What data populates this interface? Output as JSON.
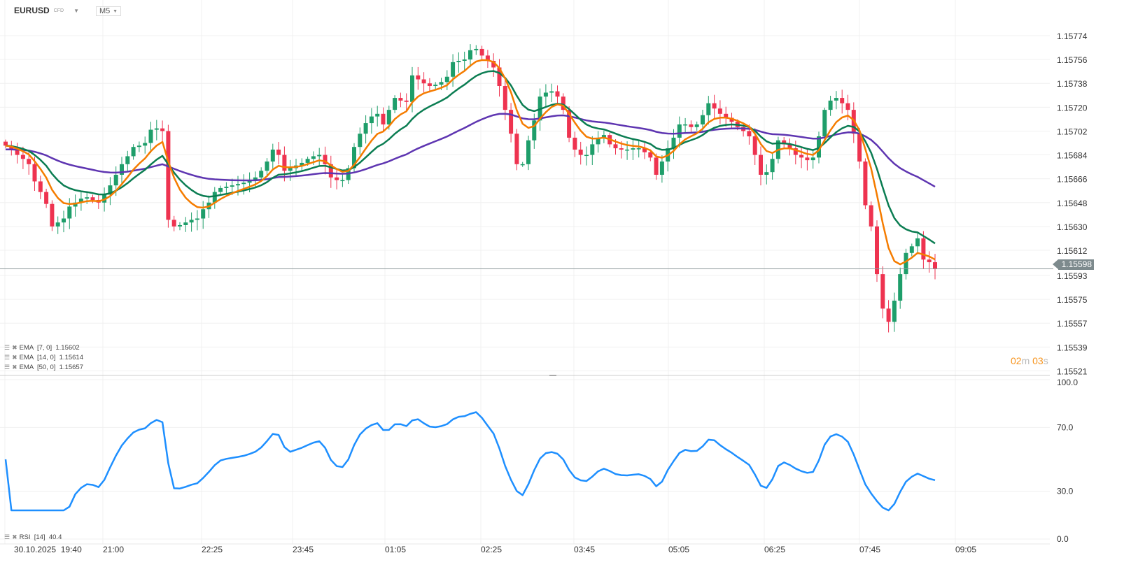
{
  "header": {
    "symbol": "EURUSD",
    "symbol_type": "CFD",
    "timeframe": "M5"
  },
  "current_price": "1.15598",
  "countdown": {
    "minutes": "02",
    "m_unit": "m",
    "seconds": "03",
    "s_unit": "s"
  },
  "indicators": {
    "ema7": "EMA  [7, 0]  1.15602",
    "ema14": "EMA  [14, 0]  1.15614",
    "ema50": "EMA  [50, 0]  1.15657",
    "rsi": "RSI  [14]  40.4"
  },
  "colors": {
    "up": "#1e9e6a",
    "down": "#ee3350",
    "ema7": "#f57c00",
    "ema14": "#0b7d52",
    "ema50": "#5e35b1",
    "rsi": "#1e8fff",
    "price_line": "#8e9a9c"
  },
  "chart_data": {
    "type": "candlestick",
    "interval": "5m",
    "price_ticks": [
      "1.15774",
      "1.15756",
      "1.15738",
      "1.15720",
      "1.15702",
      "1.15684",
      "1.15666",
      "1.15648",
      "1.15630",
      "1.15612",
      "1.15593",
      "1.15575",
      "1.15557",
      "1.15539",
      "1.15521"
    ],
    "time_ticks": [
      "30.10.2025  19:40",
      "21:00",
      "22:25",
      "23:45",
      "01:05",
      "02:25",
      "03:45",
      "05:05",
      "06:25",
      "07:45",
      "09:05"
    ],
    "rsi_ticks": [
      "100.0",
      "70.0",
      "30.0",
      "0.0"
    ],
    "closes": [
      1.15691,
      1.15688,
      1.15684,
      1.15681,
      1.15677,
      1.15664,
      1.15656,
      1.15647,
      1.1563,
      1.15633,
      1.15636,
      1.15645,
      1.15648,
      1.15651,
      1.15652,
      1.1565,
      1.15648,
      1.15654,
      1.15661,
      1.15669,
      1.15677,
      1.15683,
      1.1569,
      1.15691,
      1.15693,
      1.15703,
      1.15704,
      1.15702,
      1.15635,
      1.1563,
      1.15631,
      1.15633,
      1.15635,
      1.15636,
      1.15643,
      1.15648,
      1.15656,
      1.15659,
      1.1566,
      1.15661,
      1.15662,
      1.15663,
      1.15665,
      1.15667,
      1.15672,
      1.15679,
      1.15688,
      1.15684,
      1.15672,
      1.15674,
      1.15676,
      1.15678,
      1.15681,
      1.15683,
      1.15684,
      1.15677,
      1.15667,
      1.15665,
      1.15665,
      1.15674,
      1.1569,
      1.157,
      1.15708,
      1.15713,
      1.15715,
      1.15707,
      1.15718,
      1.15727,
      1.15725,
      1.15724,
      1.15744,
      1.15741,
      1.15738,
      1.15736,
      1.15737,
      1.15739,
      1.15743,
      1.15754,
      1.15755,
      1.15756,
      1.15763,
      1.15764,
      1.15759,
      1.15755,
      1.1575,
      1.15736,
      1.15718,
      1.157,
      1.15677,
      1.15677,
      1.15695,
      1.1571,
      1.15728,
      1.15731,
      1.15732,
      1.15728,
      1.15718,
      1.15697,
      1.15688,
      1.15684,
      1.15684,
      1.15692,
      1.15697,
      1.15699,
      1.15692,
      1.15689,
      1.15688,
      1.15688,
      1.15689,
      1.15689,
      1.15686,
      1.15682,
      1.15669,
      1.15679,
      1.15689,
      1.15697,
      1.15707,
      1.15707,
      1.15705,
      1.15707,
      1.15714,
      1.15723,
      1.15719,
      1.15715,
      1.15712,
      1.15709,
      1.15705,
      1.15702,
      1.15698,
      1.15684,
      1.15669,
      1.15671,
      1.15681,
      1.15695,
      1.15692,
      1.15689,
      1.15684,
      1.15682,
      1.1568,
      1.15682,
      1.15698,
      1.15718,
      1.15725,
      1.15727,
      1.15723,
      1.15718,
      1.157,
      1.15679,
      1.15646,
      1.1563,
      1.15594,
      1.15568,
      1.15558,
      1.15574,
      1.15594,
      1.1561,
      1.15615,
      1.15621,
      1.15605,
      1.15603,
      1.15598
    ]
  }
}
